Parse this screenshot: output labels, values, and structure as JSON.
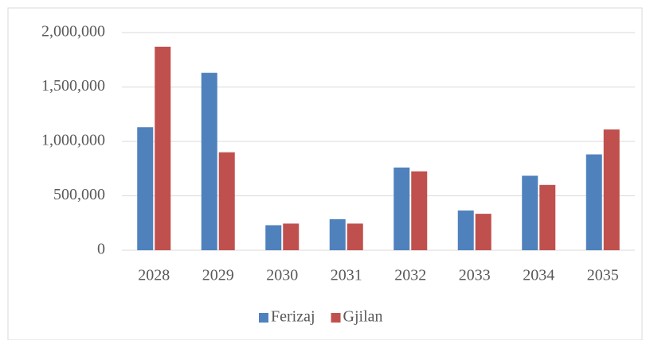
{
  "chart_data": {
    "type": "bar",
    "categories": [
      "2028",
      "2029",
      "2030",
      "2031",
      "2032",
      "2033",
      "2034",
      "2035"
    ],
    "series": [
      {
        "name": "Ferizaj",
        "color": "#4f81bd",
        "values": [
          1130000,
          1630000,
          230000,
          285000,
          760000,
          365000,
          685000,
          880000
        ]
      },
      {
        "name": "Gjilan",
        "color": "#c0504d",
        "values": [
          1870000,
          900000,
          245000,
          245000,
          725000,
          335000,
          600000,
          1110000
        ]
      }
    ],
    "ylim": [
      0,
      2000000
    ],
    "yticks": [
      0,
      {
        "value": 500000,
        "label": "500,000"
      },
      {
        "value": 1000000,
        "label": "1,000,000"
      },
      {
        "value": 1500000,
        "label": "1,500,000"
      },
      {
        "value": 2000000,
        "label": "2,000,000"
      }
    ],
    "grid": true,
    "legend": "bottom"
  }
}
